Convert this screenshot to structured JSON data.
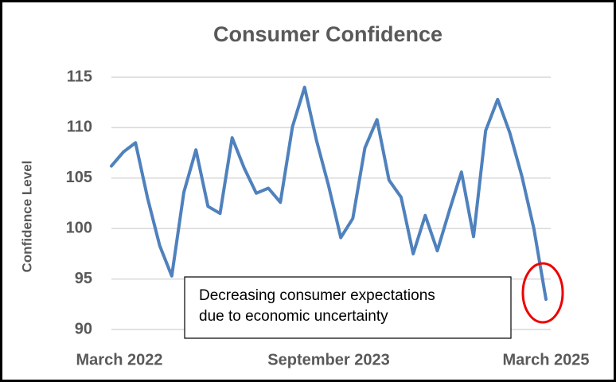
{
  "chart_data": {
    "type": "line",
    "title": "Consumer Confidence",
    "y_label": "Confidence Level",
    "categories": [
      "March 2022",
      null,
      null,
      null,
      null,
      null,
      null,
      null,
      null,
      null,
      null,
      null,
      null,
      null,
      null,
      null,
      null,
      null,
      "September 2023",
      null,
      null,
      null,
      null,
      null,
      null,
      null,
      null,
      null,
      null,
      null,
      null,
      null,
      null,
      null,
      null,
      null,
      "March 2025"
    ],
    "series": [
      {
        "name": "Consumer Confidence",
        "color": "#4f81bd",
        "values": [
          106.2,
          107.6,
          108.5,
          103,
          98.3,
          95.3,
          103.6,
          107.8,
          102.2,
          101.5,
          109,
          106,
          103.5,
          104,
          102.6,
          110.1,
          114,
          108.7,
          104.2,
          99.1,
          101,
          108,
          110.8,
          104.8,
          103.1,
          97.5,
          101.3,
          97.8,
          101.8,
          105.6,
          99.2,
          109.7,
          112.8,
          109.5,
          105.2,
          100,
          93
        ]
      }
    ],
    "ylim": [
      90,
      115
    ],
    "yticks": [
      90,
      95,
      100,
      105,
      110,
      115
    ],
    "grid": true,
    "annotation": [
      "Decreasing consumer expectations",
      "due to economic uncertainty"
    ]
  }
}
